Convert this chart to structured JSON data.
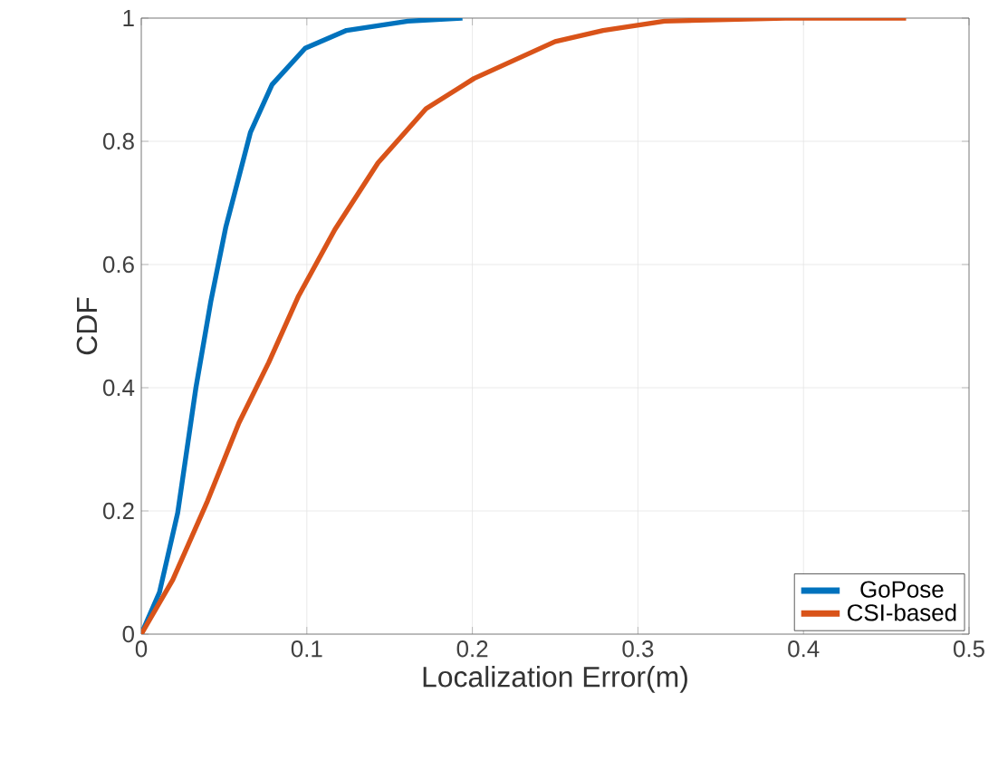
{
  "chart_data": {
    "type": "line",
    "xlabel": "Localization Error(m)",
    "ylabel": "CDF",
    "xlim": [
      0,
      0.5
    ],
    "ylim": [
      0,
      1
    ],
    "xticks": [
      0,
      0.1,
      0.2,
      0.3,
      0.4,
      0.5
    ],
    "yticks": [
      0,
      0.2,
      0.4,
      0.6,
      0.8,
      1
    ],
    "grid": true,
    "legend": "bottom right",
    "line_style": "solid",
    "marker": "none",
    "series": [
      {
        "name": "GoPose",
        "color": "#0072bd",
        "x": [
          0,
          0.011,
          0.022,
          0.033,
          0.042,
          0.051,
          0.066,
          0.079,
          0.099,
          0.124,
          0.161,
          0.194
        ],
        "values": [
          0,
          0.068,
          0.197,
          0.4,
          0.54,
          0.66,
          0.815,
          0.892,
          0.951,
          0.98,
          0.995,
          1
        ]
      },
      {
        "name": "CSI-based",
        "color": "#d95319",
        "x": [
          0,
          0.019,
          0.04,
          0.059,
          0.077,
          0.095,
          0.117,
          0.143,
          0.172,
          0.201,
          0.25,
          0.279,
          0.316,
          0.389,
          0.462
        ],
        "values": [
          0,
          0.088,
          0.216,
          0.343,
          0.441,
          0.549,
          0.657,
          0.765,
          0.853,
          0.902,
          0.962,
          0.98,
          0.995,
          1,
          1
        ]
      }
    ]
  }
}
